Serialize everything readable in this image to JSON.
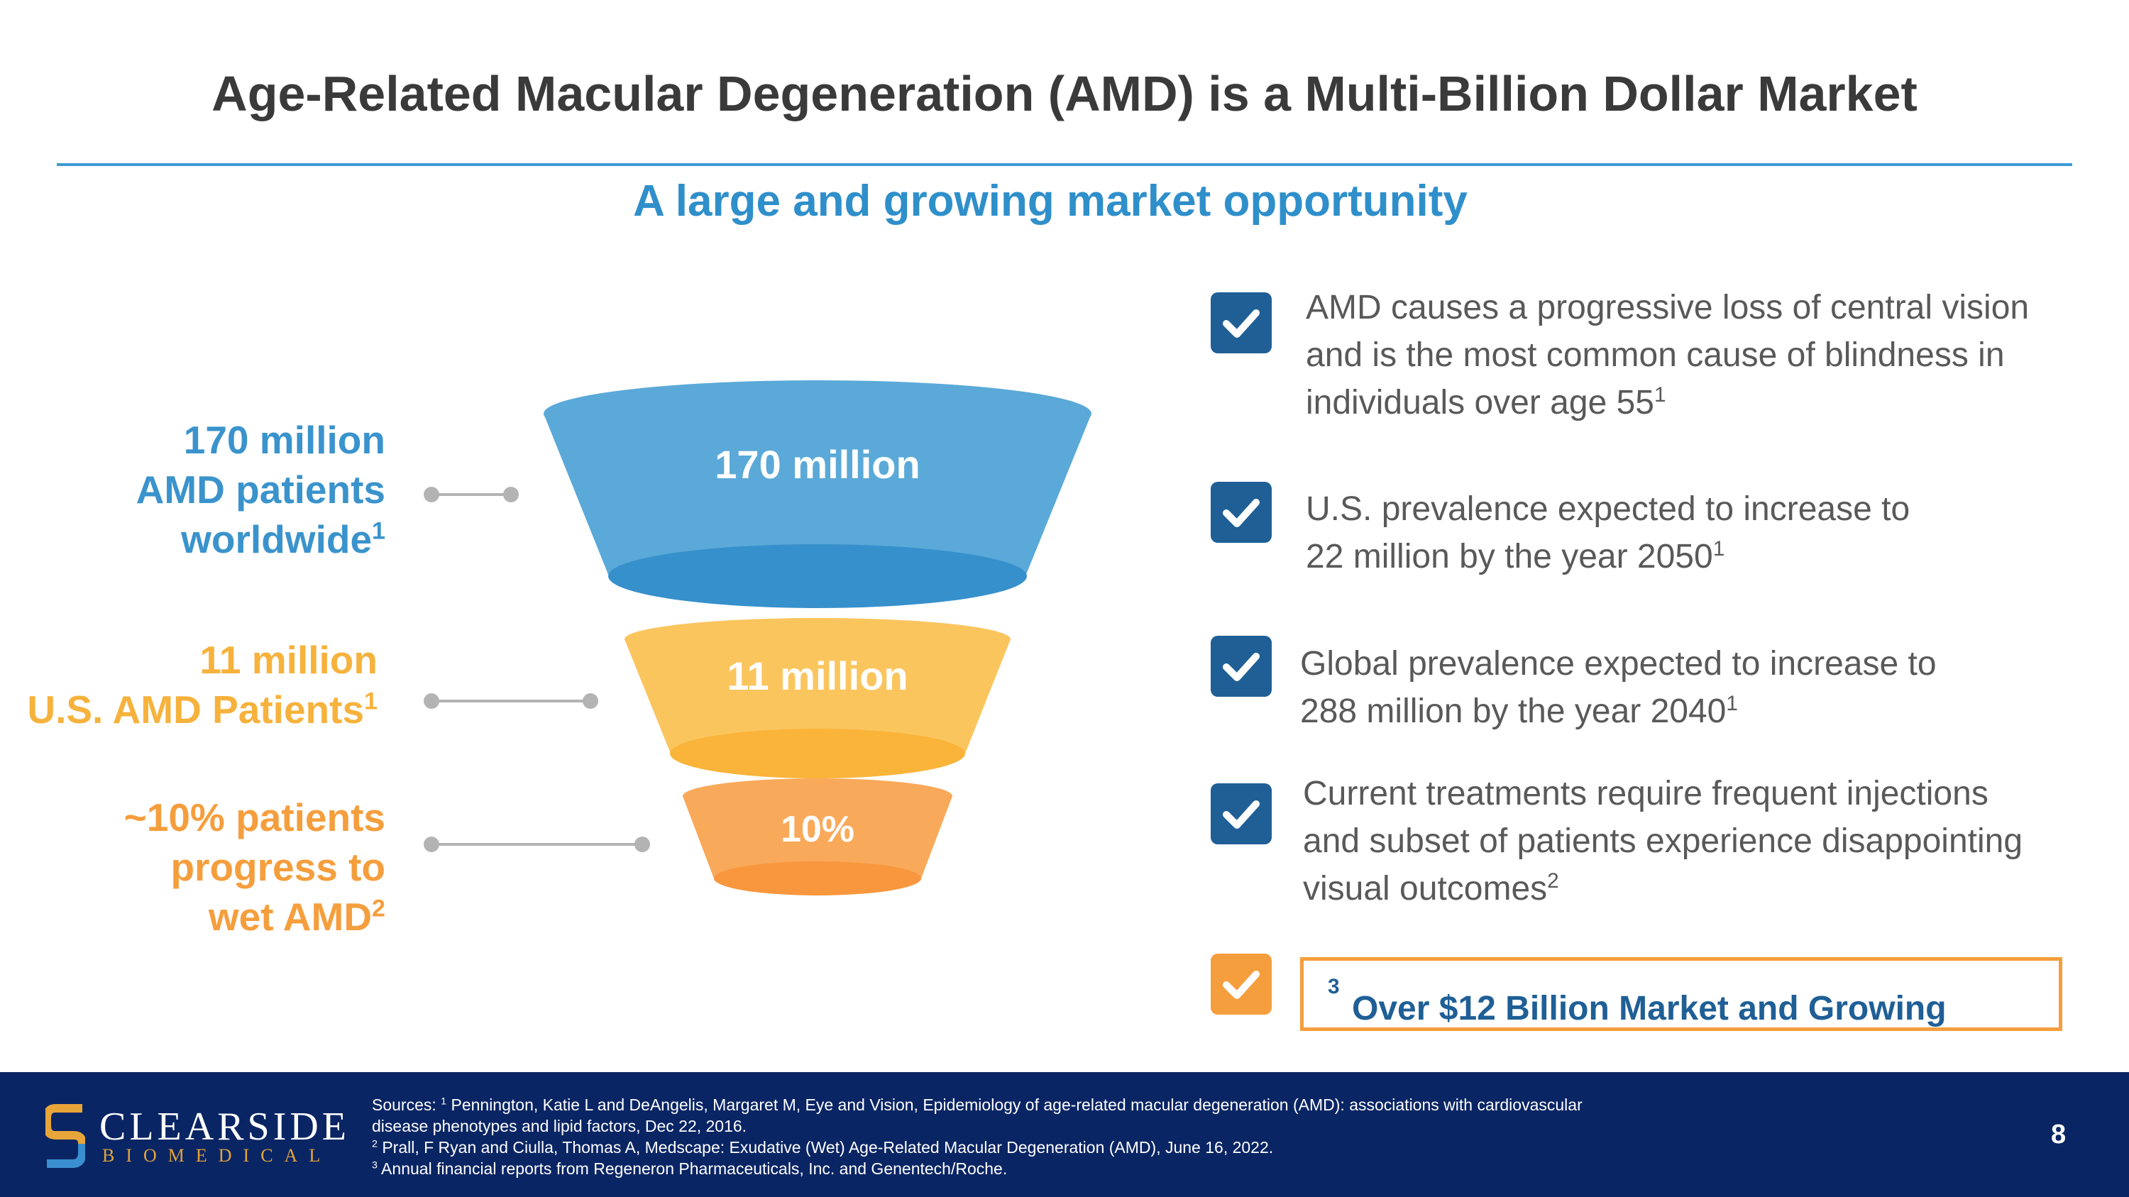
{
  "header": {
    "title": "Age-Related Macular Degeneration (AMD) is a Multi-Billion Dollar Market",
    "subtitle": "A large and growing market opportunity"
  },
  "funnel": {
    "left_labels": [
      {
        "lines": [
          "170 million",
          "AMD patients",
          "worldwide"
        ],
        "sup": "1"
      },
      {
        "lines": [
          "11 million",
          "U.S. AMD Patients"
        ],
        "sup": "1"
      },
      {
        "lines": [
          "~10% patients",
          "progress to",
          "wet AMD"
        ],
        "sup": "2"
      }
    ],
    "tiers": [
      "170 million",
      "11 million",
      "10%"
    ]
  },
  "bullets": [
    {
      "lines": [
        "AMD causes a progressive loss of central vision",
        "and is the most common cause of blindness in",
        "individuals over age 55"
      ],
      "sup": "1"
    },
    {
      "lines": [
        "U.S. prevalence expected to increase to",
        "22 million by the year 2050"
      ],
      "sup": "1"
    },
    {
      "lines": [
        "Global prevalence expected to increase to",
        "288 million by the year 2040"
      ],
      "sup": "1"
    },
    {
      "lines": [
        "Current treatments require frequent injections",
        "and subset of patients experience disappointing",
        "visual outcomes"
      ],
      "sup": "2"
    }
  ],
  "highlight": {
    "text": "Over $12 Billion Market and Growing",
    "sup": "3"
  },
  "footer": {
    "brand_name": "CLEARSIDE",
    "brand_sub": "BIOMEDICAL",
    "sources": {
      "prefix": "Sources: ",
      "lines": [
        {
          "sup": "1",
          "text": " Pennington, Katie L and DeAngelis, Margaret M, Eye and Vision, Epidemiology of age-related macular degeneration (AMD): associations with cardiovascular"
        },
        {
          "sup": "",
          "text": "disease phenotypes and lipid factors, Dec 22, 2016."
        },
        {
          "sup": "2",
          "text": " Prall, F Ryan and Ciulla, Thomas A, Medscape: Exudative (Wet) Age-Related Macular Degeneration (AMD), June 16, 2022."
        },
        {
          "sup": "3",
          "text": " Annual financial reports from Regeneron Pharmaceuticals, Inc. and Genentech/Roche."
        }
      ]
    },
    "page_number": "8"
  },
  "colors": {
    "title_text": "#3a3a3a",
    "accent_blue": "#2f8fca",
    "dark_blue": "#1f5f96",
    "funnel_blue": "#5aa9d8",
    "funnel_yellow": "#fbc55e",
    "funnel_orange": "#f9a95a",
    "footer_bg": "#0a2564",
    "check_orange": "#f59e3d"
  }
}
